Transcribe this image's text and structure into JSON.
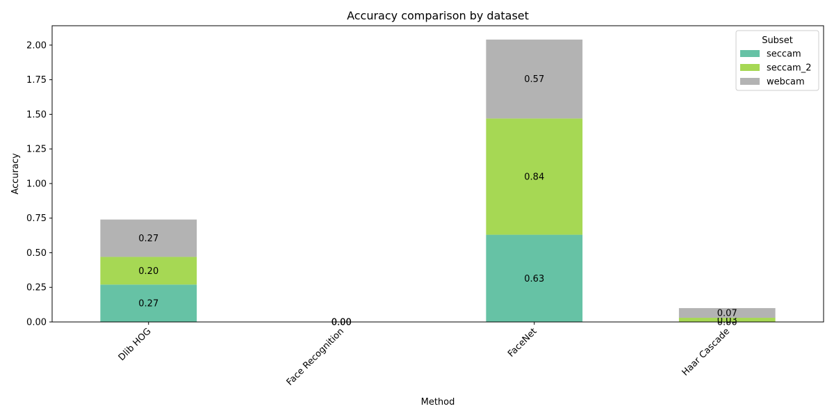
{
  "chart_data": {
    "type": "bar",
    "stacked": true,
    "title": "Accuracy comparison by dataset",
    "xlabel": "Method",
    "ylabel": "Accuracy",
    "categories": [
      "Dlib HOG",
      "Face Recognition",
      "FaceNet",
      "Haar Cascade"
    ],
    "series": [
      {
        "name": "seccam",
        "values": [
          0.27,
          0.0,
          0.63,
          0.0
        ],
        "color": "#66c2a5"
      },
      {
        "name": "seccam_2",
        "values": [
          0.2,
          0.0,
          0.84,
          0.03
        ],
        "color": "#a6d854"
      },
      {
        "name": "webcam",
        "values": [
          0.27,
          0.0,
          0.57,
          0.07
        ],
        "color": "#b3b3b3"
      }
    ],
    "data_labels": [
      [
        "0.27",
        "0.00",
        "0.63",
        "0.00"
      ],
      [
        "0.20",
        "0.00",
        "0.84",
        "0.03"
      ],
      [
        "0.27",
        "0.00",
        "0.57",
        "0.07"
      ]
    ],
    "ylim": [
      0,
      2.14
    ],
    "yticks": [
      "0.00",
      "0.25",
      "0.50",
      "0.75",
      "1.00",
      "1.25",
      "1.50",
      "1.75",
      "2.00"
    ],
    "legend": {
      "title": "Subset",
      "placement": "top-right"
    },
    "grid": false
  }
}
